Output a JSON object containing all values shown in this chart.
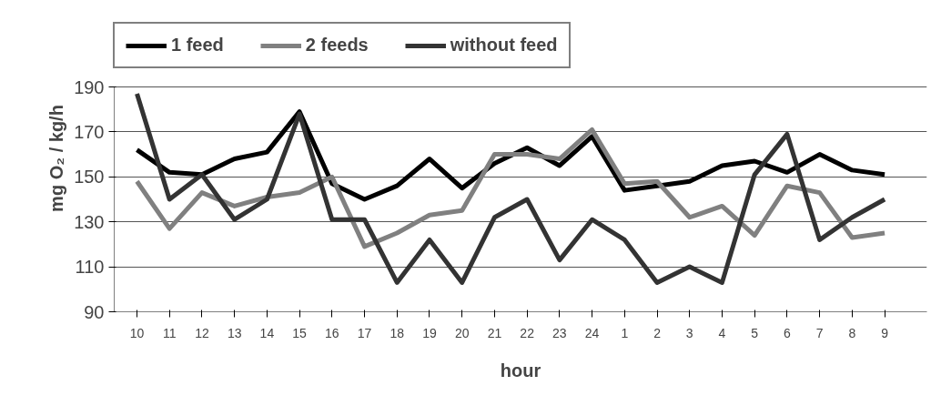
{
  "chart_data": {
    "type": "line",
    "xlabel": "hour",
    "ylabel": "mg O₂ / kg/h",
    "categories": [
      "10",
      "11",
      "12",
      "13",
      "14",
      "15",
      "16",
      "17",
      "18",
      "19",
      "20",
      "21",
      "22",
      "23",
      "24",
      "1",
      "2",
      "3",
      "4",
      "5",
      "6",
      "7",
      "8",
      "9"
    ],
    "series": [
      {
        "name": "1 feed",
        "color": "#000000",
        "values": [
          162,
          152,
          151,
          158,
          161,
          179,
          147,
          140,
          146,
          158,
          145,
          156,
          163,
          155,
          168,
          144,
          146,
          148,
          155,
          157,
          152,
          160,
          153,
          151
        ]
      },
      {
        "name": "2 feeds",
        "color": "#808080",
        "values": [
          148,
          127,
          143,
          137,
          141,
          143,
          150,
          119,
          125,
          133,
          135,
          160,
          160,
          158,
          171,
          147,
          148,
          132,
          137,
          124,
          146,
          143,
          123,
          125
        ]
      },
      {
        "name": "without feed",
        "color": "#333333",
        "values": [
          187,
          140,
          151,
          131,
          140,
          178,
          131,
          131,
          103,
          122,
          103,
          132,
          140,
          113,
          131,
          122,
          103,
          110,
          103,
          151,
          169,
          122,
          132,
          140
        ]
      }
    ],
    "ylim": [
      90,
      190
    ],
    "yticks": [
      90,
      110,
      130,
      150,
      170,
      190
    ],
    "grid": "y",
    "legend": "top",
    "marker": "none",
    "line_style": "solid"
  }
}
